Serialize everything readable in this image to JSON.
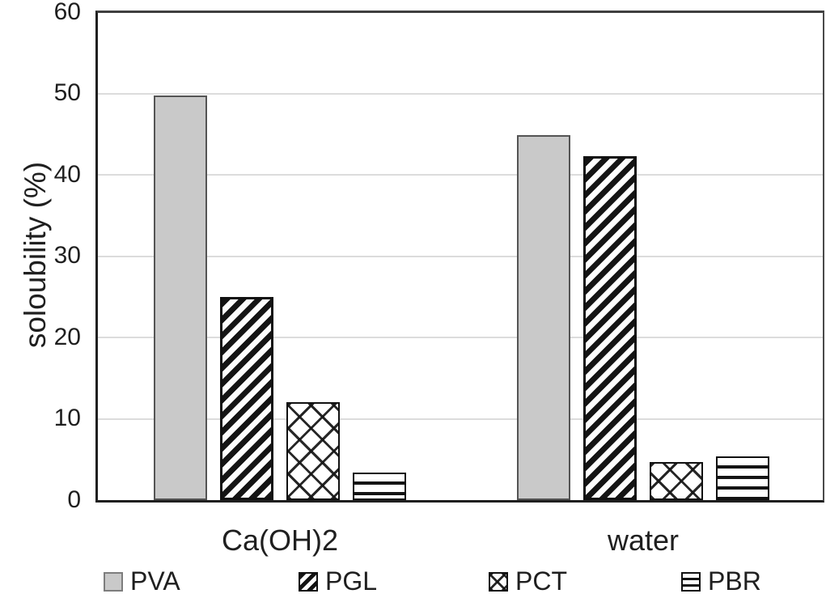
{
  "chart_data": {
    "type": "bar",
    "title": "",
    "categories": [
      "Ca(OH)2",
      "water"
    ],
    "series": [
      {
        "name": "PVA",
        "pattern": "solid-gray",
        "fill": "#c9c9c9",
        "values": [
          49.8,
          44.9
        ]
      },
      {
        "name": "PGL",
        "pattern": "diagonal-stripes",
        "fill": "#ffffff",
        "values": [
          25.0,
          42.3
        ]
      },
      {
        "name": "PCT",
        "pattern": "diamond-crosshatch",
        "fill": "#ffffff",
        "values": [
          12.0,
          4.7
        ]
      },
      {
        "name": "PBR",
        "pattern": "horizontal-stripes",
        "fill": "#ffffff",
        "values": [
          3.4,
          5.4
        ]
      }
    ],
    "xlabel": "",
    "ylabel": "soloubility (%)",
    "ylim": [
      0,
      60
    ],
    "ytick_step": 10,
    "ytick_labels": [
      "0",
      "10",
      "20",
      "30",
      "40",
      "50",
      "60"
    ],
    "grid": "horizontal",
    "legend_position": "bottom",
    "legend_entries": [
      "PVA",
      "PGL",
      "PCT",
      "PBR"
    ],
    "colors": {
      "bar_gray": "#c9c9c9",
      "pattern_ink": "#141414",
      "gridline": "#dcdcdc",
      "axis": "#1f1f1f",
      "text": "#1f1f1f",
      "background": "#ffffff"
    }
  }
}
